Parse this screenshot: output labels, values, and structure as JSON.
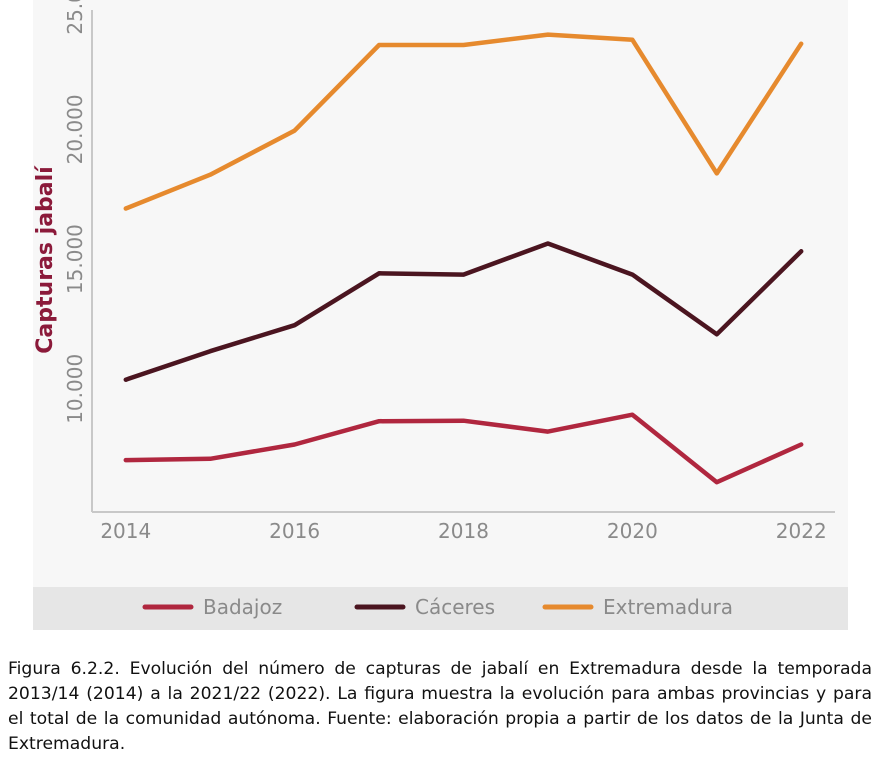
{
  "chart_data": {
    "type": "line",
    "ylabel": "Capturas jabalí",
    "xlabel": "",
    "x": [
      2014,
      2015,
      2016,
      2017,
      2018,
      2019,
      2020,
      2021,
      2022
    ],
    "x_ticks": [
      "2014",
      "2016",
      "2018",
      "2020",
      "2022"
    ],
    "x_tick_values": [
      2014,
      2016,
      2018,
      2020,
      2022
    ],
    "y_ticks": [
      "10.000",
      "15.000",
      "20.000",
      "25.000"
    ],
    "y_tick_values": [
      10000,
      15000,
      20000,
      25000
    ],
    "xlim": [
      2013.6,
      2022.4
    ],
    "ylim": [
      6600,
      25950
    ],
    "grid": false,
    "legend_position": "bottom",
    "series": [
      {
        "name": "Badajoz",
        "color": "#b0273f",
        "values": [
          8600,
          8650,
          9200,
          10100,
          10120,
          9700,
          10350,
          7750,
          9200
        ]
      },
      {
        "name": "Cáceres",
        "color": "#4b1520",
        "values": [
          11700,
          12800,
          13800,
          15800,
          15750,
          16950,
          15750,
          13450,
          16650
        ]
      },
      {
        "name": "Extremadura",
        "color": "#e68a2e",
        "values": [
          18300,
          19600,
          21300,
          24600,
          24600,
          25000,
          24800,
          19650,
          24650
        ]
      }
    ]
  },
  "caption": "Figura 6.2.2. Evolución del número de capturas de jabalí en Extremadura desde la temporada 2013/14 (2014) a la 2021/22 (2022). La figura muestra la evolución para ambas provincias y para el total de la comunidad autónoma. Fuente: elaboración propia a partir de los datos de la Junta de Extremadura."
}
